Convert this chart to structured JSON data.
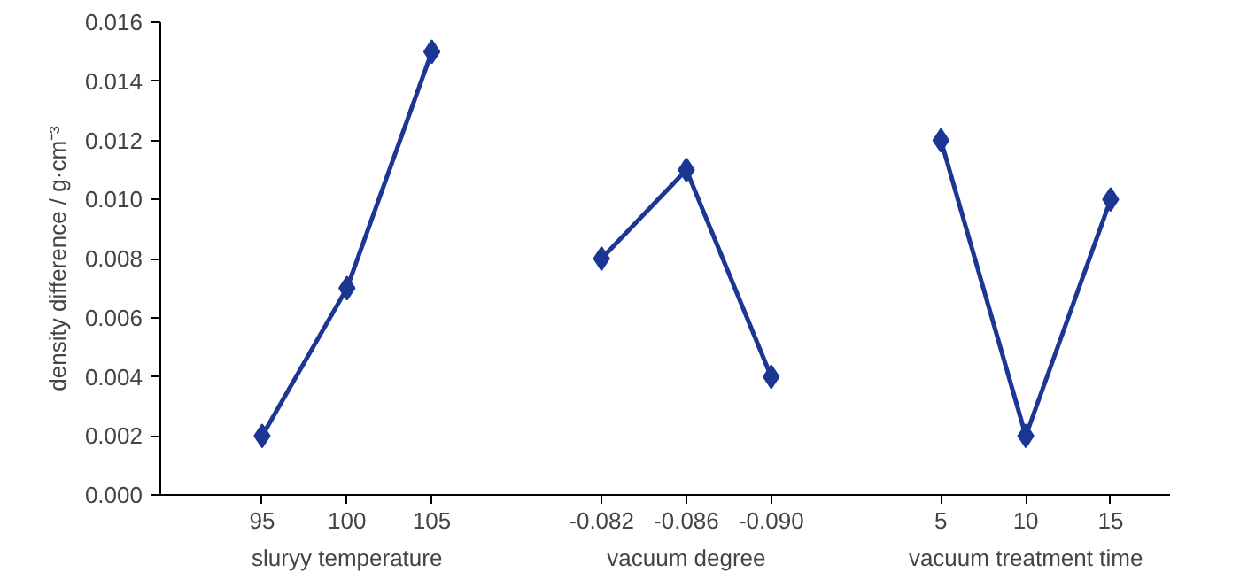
{
  "chart_data": {
    "type": "line",
    "ylabel": "density difference / g·cm⁻³",
    "categories": [
      "95",
      "100",
      "105",
      null,
      "-0.082",
      "-0.086",
      "-0.090",
      null,
      "5",
      "10",
      "15"
    ],
    "series": [
      {
        "color": "#1c3694",
        "values": [
          0.002,
          0.007,
          0.015,
          null,
          0.008,
          0.011,
          0.004,
          null,
          0.012,
          0.002,
          0.01
        ]
      }
    ],
    "annotations": [
      "sluryy temperature",
      "vacuum degree",
      "vacuum treatment time"
    ],
    "ylim": [
      0,
      0.016
    ],
    "yticks": [
      {
        "value": 0,
        "label": "0.000"
      },
      {
        "value": 0.002,
        "label": "0.002"
      },
      {
        "value": 0.004,
        "label": "0.004"
      },
      {
        "value": 0.006,
        "label": "0.006"
      },
      {
        "value": 0.008,
        "label": "0.008"
      },
      {
        "value": 0.01,
        "label": "0.010"
      },
      {
        "value": 0.012,
        "label": "0.012"
      },
      {
        "value": 0.014,
        "label": "0.014"
      },
      {
        "value": 0.016,
        "label": "0.016"
      }
    ],
    "grid": false,
    "marker": "diamond",
    "line_style": "solid"
  }
}
